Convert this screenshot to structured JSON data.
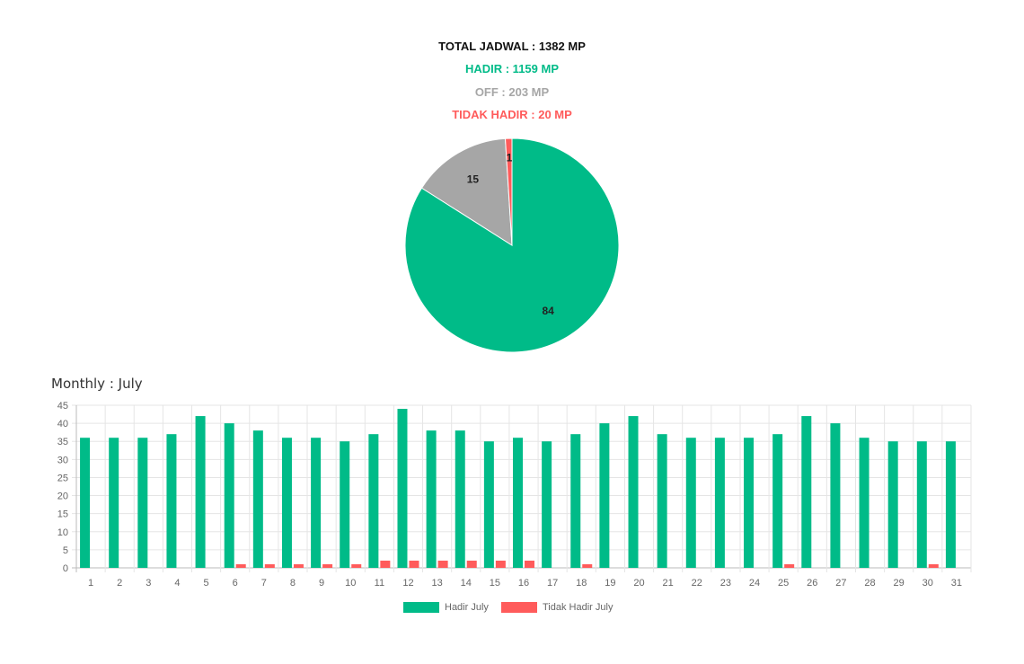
{
  "summary": {
    "total": "TOTAL JADWAL : 1382 MP",
    "hadir": "HADIR : 1159 MP",
    "off": "OFF : 203 MP",
    "tidak_hadir": "TIDAK HADIR : 20 MP"
  },
  "colors": {
    "hadir": "#00bb88",
    "off": "#a6a6a6",
    "tidak_hadir": "#ff5b5b",
    "grid": "#e5e5e5",
    "text": "#666666"
  },
  "monthly_title": "Monthly : July",
  "chart_data": [
    {
      "type": "pie",
      "labels": [
        "Hadir",
        "Off",
        "Tidak Hadir"
      ],
      "values": [
        84,
        15,
        1
      ],
      "data_labels": [
        "84",
        "15",
        "1"
      ]
    },
    {
      "type": "bar",
      "title": "Monthly : July",
      "categories": [
        "1",
        "2",
        "3",
        "4",
        "5",
        "6",
        "7",
        "8",
        "9",
        "10",
        "11",
        "12",
        "13",
        "14",
        "15",
        "16",
        "17",
        "18",
        "19",
        "20",
        "21",
        "22",
        "23",
        "24",
        "25",
        "26",
        "27",
        "28",
        "29",
        "30",
        "31"
      ],
      "series": [
        {
          "name": "Hadir July",
          "values": [
            36,
            36,
            36,
            37,
            42,
            40,
            38,
            36,
            36,
            35,
            37,
            44,
            38,
            38,
            35,
            36,
            35,
            37,
            40,
            42,
            37,
            36,
            36,
            36,
            37,
            42,
            40,
            36,
            35,
            35,
            35
          ]
        },
        {
          "name": "Tidak Hadir July",
          "values": [
            0,
            0,
            0,
            0,
            0,
            1,
            1,
            1,
            1,
            1,
            2,
            2,
            2,
            2,
            2,
            2,
            0,
            1,
            0,
            0,
            0,
            0,
            0,
            0,
            1,
            0,
            0,
            0,
            0,
            1,
            0
          ]
        }
      ],
      "ylim": [
        0,
        45
      ],
      "yticks": [
        0,
        5,
        10,
        15,
        20,
        25,
        30,
        35,
        40,
        45
      ],
      "grid": true,
      "legend_position": "bottom"
    }
  ]
}
